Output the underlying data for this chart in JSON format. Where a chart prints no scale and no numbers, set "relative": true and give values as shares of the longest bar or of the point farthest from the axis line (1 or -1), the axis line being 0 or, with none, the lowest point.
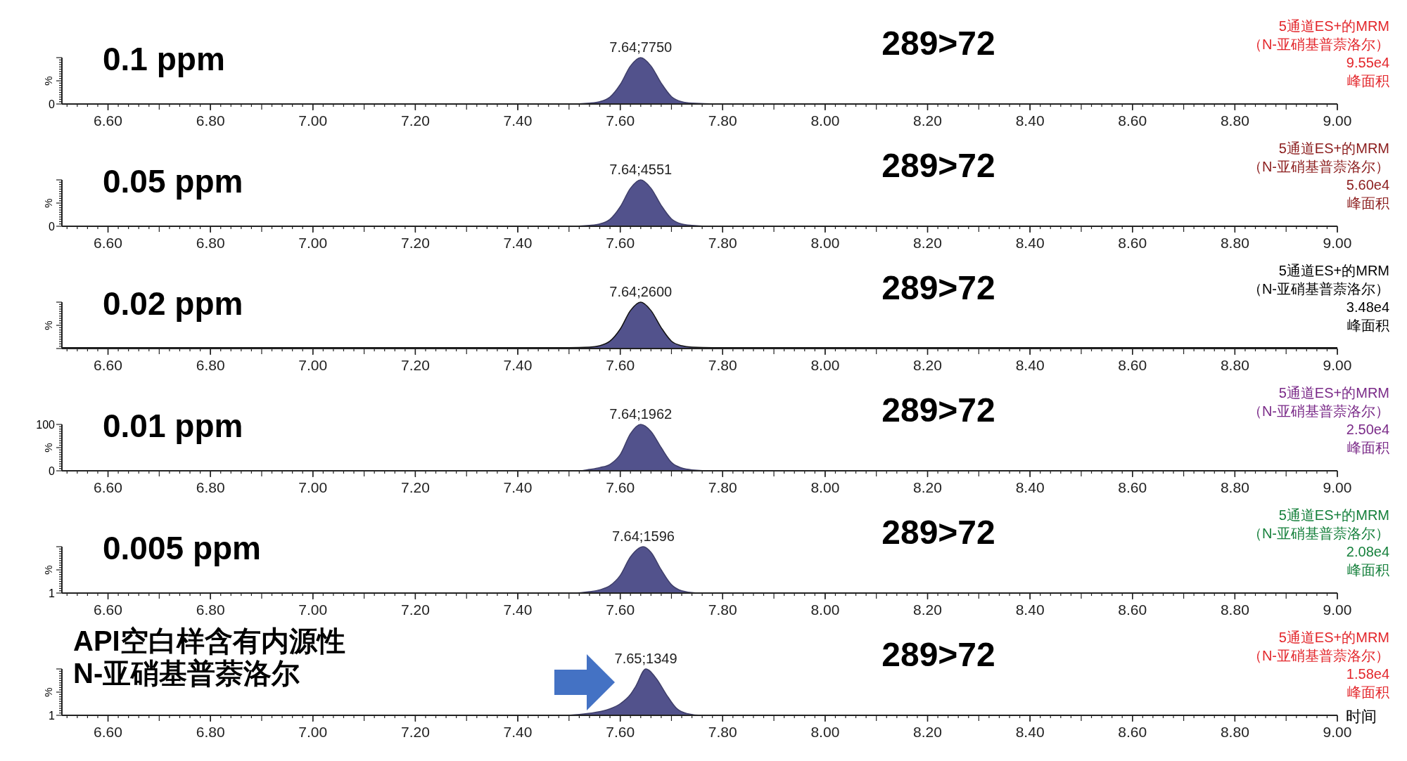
{
  "chart_data": [
    {
      "type": "area",
      "title": "0.1 ppm",
      "subtitle": "289>72",
      "ylabel": "%",
      "relative": true,
      "xlim": [
        6.51,
        9.0
      ],
      "xticks": [
        {
          "value": 6.6,
          "label": "6.60"
        },
        {
          "value": 6.8,
          "label": "6.80"
        },
        {
          "value": 7.0,
          "label": "7.00"
        },
        {
          "value": 7.2,
          "label": "7.20"
        },
        {
          "value": 7.4,
          "label": "7.40"
        },
        {
          "value": 7.6,
          "label": "7.60"
        },
        {
          "value": 7.8,
          "label": "7.80"
        },
        {
          "value": 8.0,
          "label": "8.00"
        },
        {
          "value": 8.2,
          "label": "8.20"
        },
        {
          "value": 8.4,
          "label": "8.40"
        },
        {
          "value": 8.6,
          "label": "8.60"
        },
        {
          "value": 8.8,
          "label": "8.80"
        },
        {
          "value": 9.0,
          "label": "9.00"
        }
      ],
      "x": [
        6.51,
        7.5,
        7.54,
        7.56,
        7.58,
        7.6,
        7.62,
        7.64,
        7.66,
        7.68,
        7.7,
        7.72,
        7.74,
        7.8,
        9.0
      ],
      "series": [
        {
          "color": "#52528c",
          "values": [
            0,
            0,
            0.02,
            0.05,
            0.15,
            0.42,
            0.82,
            1,
            0.82,
            0.45,
            0.16,
            0.05,
            0.02,
            0,
            0
          ]
        }
      ],
      "annotations": [
        {
          "text": "7.64;7750",
          "x": 7.64,
          "y": 1
        },
        "0",
        "5通道ES+的MRM",
        "（N-亚硝基普萘洛尔）",
        "9.55e4",
        "峰面积"
      ]
    },
    {
      "type": "area",
      "title": "0.05 ppm",
      "subtitle": "289>72",
      "ylabel": "%",
      "relative": true,
      "xlim": [
        6.51,
        9.0
      ],
      "xticks": [
        {
          "value": 6.6,
          "label": "6.60"
        },
        {
          "value": 6.8,
          "label": "6.80"
        },
        {
          "value": 7.0,
          "label": "7.00"
        },
        {
          "value": 7.2,
          "label": "7.20"
        },
        {
          "value": 7.4,
          "label": "7.40"
        },
        {
          "value": 7.6,
          "label": "7.60"
        },
        {
          "value": 7.8,
          "label": "7.80"
        },
        {
          "value": 8.0,
          "label": "8.00"
        },
        {
          "value": 8.2,
          "label": "8.20"
        },
        {
          "value": 8.4,
          "label": "8.40"
        },
        {
          "value": 8.6,
          "label": "8.60"
        },
        {
          "value": 8.8,
          "label": "8.80"
        },
        {
          "value": 9.0,
          "label": "9.00"
        }
      ],
      "x": [
        6.51,
        7.5,
        7.54,
        7.56,
        7.58,
        7.6,
        7.62,
        7.64,
        7.66,
        7.68,
        7.7,
        7.72,
        7.74,
        7.78,
        9.0
      ],
      "series": [
        {
          "color": "#52528c",
          "values": [
            0,
            0,
            0.02,
            0.05,
            0.15,
            0.42,
            0.82,
            1,
            0.82,
            0.45,
            0.16,
            0.05,
            0.02,
            0,
            0
          ]
        }
      ],
      "annotations": [
        {
          "text": "7.64;4551",
          "x": 7.64,
          "y": 1
        },
        "0",
        "5通道ES+的MRM",
        "（N-亚硝基普萘洛尔）",
        "5.60e4",
        "峰面积"
      ]
    },
    {
      "type": "area",
      "title": "0.02 ppm",
      "subtitle": "289>72",
      "ylabel": "%",
      "relative": true,
      "xlim": [
        6.51,
        9.0
      ],
      "xticks": [
        {
          "value": 6.6,
          "label": "6.60"
        },
        {
          "value": 6.8,
          "label": "6.80"
        },
        {
          "value": 7.0,
          "label": "7.00"
        },
        {
          "value": 7.2,
          "label": "7.20"
        },
        {
          "value": 7.4,
          "label": "7.40"
        },
        {
          "value": 7.6,
          "label": "7.60"
        },
        {
          "value": 7.8,
          "label": "7.80"
        },
        {
          "value": 8.0,
          "label": "8.00"
        },
        {
          "value": 8.2,
          "label": "8.20"
        },
        {
          "value": 8.4,
          "label": "8.40"
        },
        {
          "value": 8.6,
          "label": "8.60"
        },
        {
          "value": 8.8,
          "label": "8.80"
        },
        {
          "value": 9.0,
          "label": "9.00"
        }
      ],
      "x": [
        6.51,
        7.5,
        7.54,
        7.56,
        7.58,
        7.6,
        7.62,
        7.64,
        7.66,
        7.68,
        7.7,
        7.72,
        7.74,
        7.78,
        9.0
      ],
      "series": [
        {
          "color": "#52528c",
          "values": [
            0.02,
            0.02,
            0.03,
            0.06,
            0.16,
            0.42,
            0.82,
            1,
            0.82,
            0.45,
            0.16,
            0.06,
            0.03,
            0.02,
            0.02
          ]
        }
      ],
      "annotations": [
        {
          "text": "7.64;2600",
          "x": 7.64,
          "y": 1
        },
        "5通道ES+的MRM",
        "（N-亚硝基普萘洛尔）",
        "3.48e4",
        "峰面积"
      ]
    },
    {
      "type": "area",
      "title": "0.01 ppm",
      "subtitle": "289>72",
      "ylabel": "%",
      "ylim": [
        0,
        100
      ],
      "yticks": [
        0,
        100
      ],
      "xlim": [
        6.51,
        9.0
      ],
      "xticks": [
        {
          "value": 6.6,
          "label": "6.60"
        },
        {
          "value": 6.8,
          "label": "6.80"
        },
        {
          "value": 7.0,
          "label": "7.00"
        },
        {
          "value": 7.2,
          "label": "7.20"
        },
        {
          "value": 7.4,
          "label": "7.40"
        },
        {
          "value": 7.6,
          "label": "7.60"
        },
        {
          "value": 7.8,
          "label": "7.80"
        },
        {
          "value": 8.0,
          "label": "8.00"
        },
        {
          "value": 8.2,
          "label": "8.20"
        },
        {
          "value": 8.4,
          "label": "8.40"
        },
        {
          "value": 8.6,
          "label": "8.60"
        },
        {
          "value": 8.8,
          "label": "8.80"
        },
        {
          "value": 9.0,
          "label": "9.00"
        }
      ],
      "x": [
        6.51,
        7.52,
        7.54,
        7.56,
        7.58,
        7.6,
        7.62,
        7.64,
        7.66,
        7.68,
        7.7,
        7.72,
        7.74,
        7.78,
        9.0
      ],
      "series": [
        {
          "color": "#52528c",
          "values": [
            0,
            0,
            3,
            7,
            14,
            35,
            80,
            100,
            85,
            50,
            18,
            6,
            2,
            0,
            0
          ]
        }
      ],
      "annotations": [
        {
          "text": "7.64;1962",
          "x": 7.64,
          "y": 100
        },
        "5通道ES+的MRM",
        "（N-亚硝基普萘洛尔）",
        "2.50e4",
        "峰面积"
      ]
    },
    {
      "type": "area",
      "title": "0.005 ppm",
      "subtitle": "289>72",
      "ylabel": "%",
      "relative": true,
      "xlim": [
        6.51,
        9.0
      ],
      "xticks": [
        {
          "value": 6.6,
          "label": "6.60"
        },
        {
          "value": 6.8,
          "label": "6.80"
        },
        {
          "value": 7.0,
          "label": "7.00"
        },
        {
          "value": 7.2,
          "label": "7.20"
        },
        {
          "value": 7.4,
          "label": "7.40"
        },
        {
          "value": 7.6,
          "label": "7.60"
        },
        {
          "value": 7.8,
          "label": "7.80"
        },
        {
          "value": 8.0,
          "label": "8.00"
        },
        {
          "value": 8.2,
          "label": "8.20"
        },
        {
          "value": 8.4,
          "label": "8.40"
        },
        {
          "value": 8.6,
          "label": "8.60"
        },
        {
          "value": 8.8,
          "label": "8.80"
        },
        {
          "value": 9.0,
          "label": "9.00"
        }
      ],
      "x": [
        6.51,
        7.51,
        7.54,
        7.56,
        7.58,
        7.6,
        7.62,
        7.645,
        7.66,
        7.68,
        7.7,
        7.72,
        7.75,
        9.0
      ],
      "series": [
        {
          "color": "#52528c",
          "values": [
            0,
            0,
            0.03,
            0.07,
            0.16,
            0.38,
            0.78,
            1,
            0.88,
            0.5,
            0.18,
            0.05,
            0,
            0
          ]
        }
      ],
      "annotations": [
        {
          "text": "7.64;1596",
          "x": 7.645,
          "y": 1
        },
        "1",
        "5通道ES+的MRM",
        "（N-亚硝基普萘洛尔）",
        "2.08e4",
        "峰面积"
      ]
    },
    {
      "type": "area",
      "title": "API空白样含有内源性\nN-亚硝基普萘洛尔",
      "subtitle": "289>72",
      "ylabel": "%",
      "xlabel": "时间",
      "relative": true,
      "xlim": [
        6.51,
        9.0
      ],
      "xticks": [
        {
          "value": 6.6,
          "label": "6.60"
        },
        {
          "value": 6.8,
          "label": "6.80"
        },
        {
          "value": 7.0,
          "label": "7.00"
        },
        {
          "value": 7.2,
          "label": "7.20"
        },
        {
          "value": 7.4,
          "label": "7.40"
        },
        {
          "value": 7.6,
          "label": "7.60"
        },
        {
          "value": 7.8,
          "label": "7.80"
        },
        {
          "value": 8.0,
          "label": "8.00"
        },
        {
          "value": 8.2,
          "label": "8.20"
        },
        {
          "value": 8.4,
          "label": "8.40"
        },
        {
          "value": 8.6,
          "label": "8.60"
        },
        {
          "value": 8.8,
          "label": "8.80"
        },
        {
          "value": 9.0,
          "label": "9.00"
        }
      ],
      "x": [
        6.51,
        7.49,
        7.52,
        7.55,
        7.58,
        7.6,
        7.62,
        7.63,
        7.65,
        7.67,
        7.69,
        7.71,
        7.73,
        7.76,
        9.0
      ],
      "series": [
        {
          "color": "#52528c",
          "values": [
            0,
            0,
            0.02,
            0.06,
            0.14,
            0.25,
            0.45,
            0.62,
            1,
            0.8,
            0.45,
            0.15,
            0.04,
            0,
            0
          ]
        }
      ],
      "annotations": [
        {
          "text": "7.65;1349",
          "x": 7.65,
          "y": 1
        },
        "1",
        "5通道ES+的MRM",
        "（N-亚硝基普萘洛尔）",
        "1.58e4",
        "峰面积"
      ]
    }
  ]
}
